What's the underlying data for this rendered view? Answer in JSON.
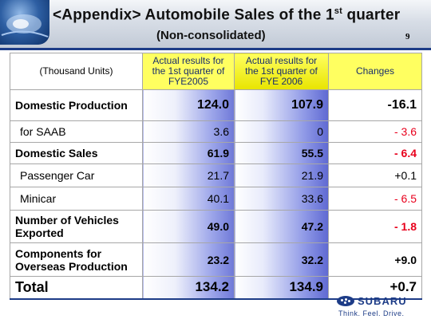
{
  "header": {
    "title_main": "<Appendix>  Automobile Sales of the 1",
    "title_sup": "st",
    "title_end": " quarter",
    "subtitle": "(Non-consolidated)",
    "page_number": "9"
  },
  "table": {
    "corner_label": "(Thousand Units)",
    "columns": [
      "Actual results for the 1st quarter of FYE2005",
      "Actual results for the 1st quarter of FYE 2006",
      "Changes"
    ],
    "rows": [
      {
        "label": "Domestic Production",
        "fy2005": "124.0",
        "fy2006": "107.9",
        "change": "-16.1"
      },
      {
        "label": "for SAAB",
        "fy2005": "3.6",
        "fy2006": "0",
        "change": "- 3.6"
      },
      {
        "label": "Domestic Sales",
        "fy2005": "61.9",
        "fy2006": "55.5",
        "change": "- 6.4"
      },
      {
        "label": "Passenger Car",
        "fy2005": "21.7",
        "fy2006": "21.9",
        "change": "+0.1"
      },
      {
        "label": "Minicar",
        "fy2005": "40.1",
        "fy2006": "33.6",
        "change": "- 6.5"
      },
      {
        "label": "Number of Vehicles Exported",
        "fy2005": "49.0",
        "fy2006": "47.2",
        "change": "- 1.8"
      },
      {
        "label": "Components for Overseas Production",
        "fy2005": "23.2",
        "fy2006": "32.2",
        "change": "+9.0"
      },
      {
        "label": "Total",
        "fy2005": "134.2",
        "fy2006": "134.9",
        "change": "+0.7"
      }
    ]
  },
  "footer": {
    "logo_text": "SUBARU",
    "tagline": "Think. Feel. Drive."
  },
  "colors": {
    "accent_blue": "#1d3c87",
    "header_yellow": "#ffff60",
    "negative_red": "#e8001c"
  }
}
